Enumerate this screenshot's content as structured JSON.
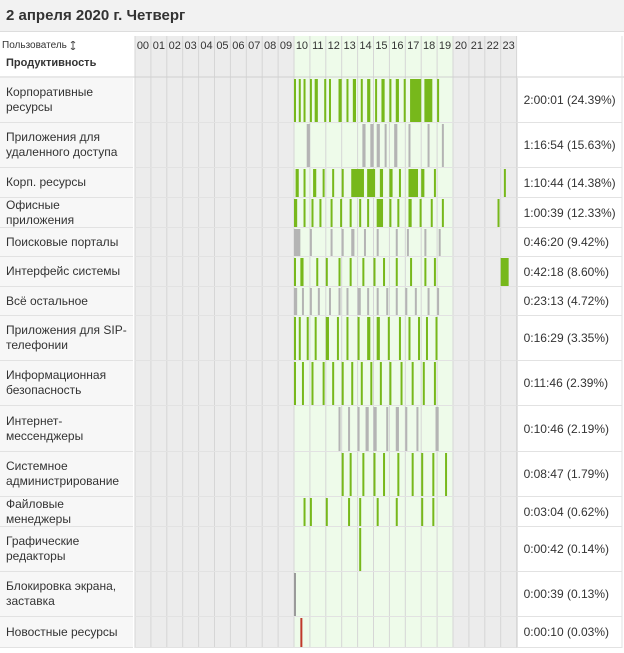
{
  "title": "2 апреля 2020 г. Четверг",
  "table": {
    "header": {
      "user": "Пользователь",
      "productivity": "Продуктивность",
      "hours": [
        "00",
        "01",
        "02",
        "03",
        "04",
        "05",
        "06",
        "07",
        "08",
        "09",
        "10",
        "11",
        "12",
        "13",
        "14",
        "15",
        "16",
        "17",
        "18",
        "19",
        "20",
        "21",
        "22",
        "23"
      ]
    },
    "rows": [
      {
        "name": "Корпоративные ресурсы",
        "total": "2:00:01 (24.39%)",
        "color": "#77b81b",
        "activity": [
          [
            10,
            10.1
          ],
          [
            10.3,
            10.4
          ],
          [
            10.6,
            10.7
          ],
          [
            11.0,
            11.1
          ],
          [
            11.3,
            11.5
          ],
          [
            11.9,
            12.0
          ],
          [
            12.2,
            12.3
          ],
          [
            12.8,
            13.0
          ],
          [
            13.3,
            13.4
          ],
          [
            13.7,
            13.9
          ],
          [
            14.2,
            14.3
          ],
          [
            14.6,
            14.8
          ],
          [
            15.1,
            15.2
          ],
          [
            15.5,
            15.7
          ],
          [
            16.0,
            16.1
          ],
          [
            16.4,
            16.6
          ],
          [
            16.9,
            17.0
          ],
          [
            17.3,
            18.0
          ],
          [
            18.2,
            18.7
          ],
          [
            19.0,
            19.1
          ]
        ]
      },
      {
        "name": "Приложения для удаленного доступа",
        "total": "1:16:54 (15.63%)",
        "color": "#b4b4b4",
        "activity": [
          [
            10.8,
            11.0
          ],
          [
            14.3,
            14.5
          ],
          [
            14.8,
            15.0
          ],
          [
            15.2,
            15.4
          ],
          [
            15.7,
            15.8
          ],
          [
            16.3,
            16.5
          ],
          [
            17.2,
            17.3
          ],
          [
            18.4,
            18.5
          ],
          [
            19.3,
            19.4
          ]
        ]
      },
      {
        "name": "Корп. ресурсы",
        "total": "1:10:44 (14.38%)",
        "color": "#77b81b",
        "activity": [
          [
            10.1,
            10.3
          ],
          [
            10.6,
            10.7
          ],
          [
            11.2,
            11.4
          ],
          [
            11.8,
            11.9
          ],
          [
            12.4,
            12.5
          ],
          [
            13.0,
            13.1
          ],
          [
            13.6,
            14.4
          ],
          [
            14.6,
            15.1
          ],
          [
            15.4,
            15.6
          ],
          [
            16.0,
            16.2
          ],
          [
            16.6,
            16.7
          ],
          [
            17.2,
            17.8
          ],
          [
            18.0,
            18.2
          ],
          [
            18.8,
            18.9
          ],
          [
            23.2,
            23.3
          ]
        ]
      },
      {
        "name": "Офисные приложения",
        "total": "1:00:39 (12.33%)",
        "color": "#77b81b",
        "activity": [
          [
            10.0,
            10.2
          ],
          [
            10.6,
            10.7
          ],
          [
            11.1,
            11.2
          ],
          [
            11.6,
            11.7
          ],
          [
            12.3,
            12.4
          ],
          [
            12.9,
            13.0
          ],
          [
            13.5,
            13.6
          ],
          [
            14.1,
            14.2
          ],
          [
            14.6,
            14.7
          ],
          [
            15.2,
            15.6
          ],
          [
            16.0,
            16.1
          ],
          [
            16.5,
            16.6
          ],
          [
            17.2,
            17.4
          ],
          [
            17.9,
            18.0
          ],
          [
            18.6,
            18.7
          ],
          [
            19.3,
            19.4
          ],
          [
            22.8,
            22.9
          ]
        ]
      },
      {
        "name": "Поисковые порталы",
        "total": "0:46:20 (9.42%)",
        "color": "#b4b4b4",
        "activity": [
          [
            10.0,
            10.4
          ],
          [
            11.0,
            11.1
          ],
          [
            12.3,
            12.4
          ],
          [
            13.0,
            13.1
          ],
          [
            13.6,
            13.8
          ],
          [
            14.4,
            14.5
          ],
          [
            15.2,
            15.3
          ],
          [
            16.4,
            16.5
          ],
          [
            17.1,
            17.2
          ],
          [
            18.2,
            18.3
          ],
          [
            19.1,
            19.2
          ]
        ]
      },
      {
        "name": "Интерфейс системы",
        "total": "0:42:18 (8.60%)",
        "color": "#77b81b",
        "activity": [
          [
            10.0,
            10.1
          ],
          [
            10.4,
            10.6
          ],
          [
            11.4,
            11.5
          ],
          [
            12.0,
            12.1
          ],
          [
            12.8,
            12.9
          ],
          [
            13.5,
            13.6
          ],
          [
            14.3,
            14.4
          ],
          [
            15.0,
            15.1
          ],
          [
            15.6,
            15.7
          ],
          [
            16.4,
            16.5
          ],
          [
            17.3,
            17.4
          ],
          [
            18.2,
            18.3
          ],
          [
            18.8,
            18.9
          ],
          [
            23.0,
            23.5
          ]
        ]
      },
      {
        "name": "Всё остальное",
        "total": "0:23:13 (4.72%)",
        "color": "#b4b4b4",
        "activity": [
          [
            10.0,
            10.2
          ],
          [
            10.5,
            10.6
          ],
          [
            11.0,
            11.1
          ],
          [
            11.5,
            11.6
          ],
          [
            12.2,
            12.3
          ],
          [
            12.8,
            12.9
          ],
          [
            13.3,
            13.4
          ],
          [
            14.0,
            14.2
          ],
          [
            14.6,
            14.7
          ],
          [
            15.2,
            15.3
          ],
          [
            15.8,
            15.9
          ],
          [
            16.4,
            16.5
          ],
          [
            17.0,
            17.1
          ],
          [
            17.6,
            17.7
          ],
          [
            18.4,
            18.5
          ],
          [
            19.0,
            19.1
          ]
        ]
      },
      {
        "name": "Приложения для SIP-телефонии",
        "total": "0:16:29 (3.35%)",
        "color": "#77b81b",
        "activity": [
          [
            10.0,
            10.1
          ],
          [
            10.3,
            10.4
          ],
          [
            10.8,
            10.9
          ],
          [
            11.3,
            11.4
          ],
          [
            12.0,
            12.2
          ],
          [
            12.7,
            12.8
          ],
          [
            13.3,
            13.4
          ],
          [
            14.0,
            14.1
          ],
          [
            14.6,
            14.8
          ],
          [
            15.2,
            15.4
          ],
          [
            15.9,
            16.0
          ],
          [
            16.6,
            16.7
          ],
          [
            17.2,
            17.3
          ],
          [
            17.8,
            17.9
          ],
          [
            18.3,
            18.4
          ],
          [
            18.9,
            19.0
          ]
        ]
      },
      {
        "name": "Информационная безопасность",
        "total": "0:11:46 (2.39%)",
        "color": "#77b81b",
        "activity": [
          [
            10.0,
            10.1
          ],
          [
            10.5,
            10.6
          ],
          [
            11.1,
            11.2
          ],
          [
            11.8,
            11.9
          ],
          [
            12.4,
            12.5
          ],
          [
            13.0,
            13.1
          ],
          [
            13.6,
            13.7
          ],
          [
            14.2,
            14.3
          ],
          [
            14.8,
            14.9
          ],
          [
            15.4,
            15.5
          ],
          [
            16.0,
            16.1
          ],
          [
            16.7,
            16.8
          ],
          [
            17.4,
            17.5
          ],
          [
            18.1,
            18.2
          ],
          [
            18.8,
            18.9
          ]
        ]
      },
      {
        "name": "Интернет-мессенджеры",
        "total": "0:10:46 (2.19%)",
        "color": "#b4b4b4",
        "activity": [
          [
            12.8,
            12.9
          ],
          [
            13.4,
            13.5
          ],
          [
            14.0,
            14.1
          ],
          [
            14.5,
            14.7
          ],
          [
            15.0,
            15.2
          ],
          [
            15.8,
            15.9
          ],
          [
            16.4,
            16.6
          ],
          [
            17.0,
            17.1
          ],
          [
            17.7,
            17.8
          ],
          [
            18.9,
            19.1
          ]
        ]
      },
      {
        "name": "Системное администрирование",
        "total": "0:08:47 (1.79%)",
        "color": "#77b81b",
        "activity": [
          [
            13.0,
            13.1
          ],
          [
            13.5,
            13.6
          ],
          [
            14.3,
            14.4
          ],
          [
            15.0,
            15.1
          ],
          [
            15.6,
            15.7
          ],
          [
            16.5,
            16.6
          ],
          [
            17.4,
            17.5
          ],
          [
            18.0,
            18.1
          ],
          [
            18.7,
            18.8
          ],
          [
            19.5,
            19.6
          ]
        ]
      },
      {
        "name": "Файловые менеджеры",
        "total": "0:03:04 (0.62%)",
        "color": "#77b81b",
        "activity": [
          [
            10.6,
            10.7
          ],
          [
            11.0,
            11.1
          ],
          [
            12.0,
            12.1
          ],
          [
            13.4,
            13.5
          ],
          [
            14.1,
            14.2
          ],
          [
            15.2,
            15.3
          ],
          [
            16.4,
            16.5
          ],
          [
            18.0,
            18.1
          ],
          [
            18.7,
            18.8
          ]
        ]
      },
      {
        "name": "Графические редакторы",
        "total": "0:00:42 (0.14%)",
        "color": "#77b81b",
        "activity": [
          [
            14.1,
            14.2
          ]
        ]
      },
      {
        "name": "Блокировка экрана, заставка",
        "total": "0:00:39 (0.13%)",
        "color": "#9a9a9a",
        "activity": [
          [
            10.0,
            10.05
          ]
        ]
      },
      {
        "name": "Новостные ресурсы",
        "total": "0:00:10 (0.03%)",
        "color": "#c0392b",
        "activity": [
          [
            10.4,
            10.45
          ]
        ]
      }
    ]
  }
}
